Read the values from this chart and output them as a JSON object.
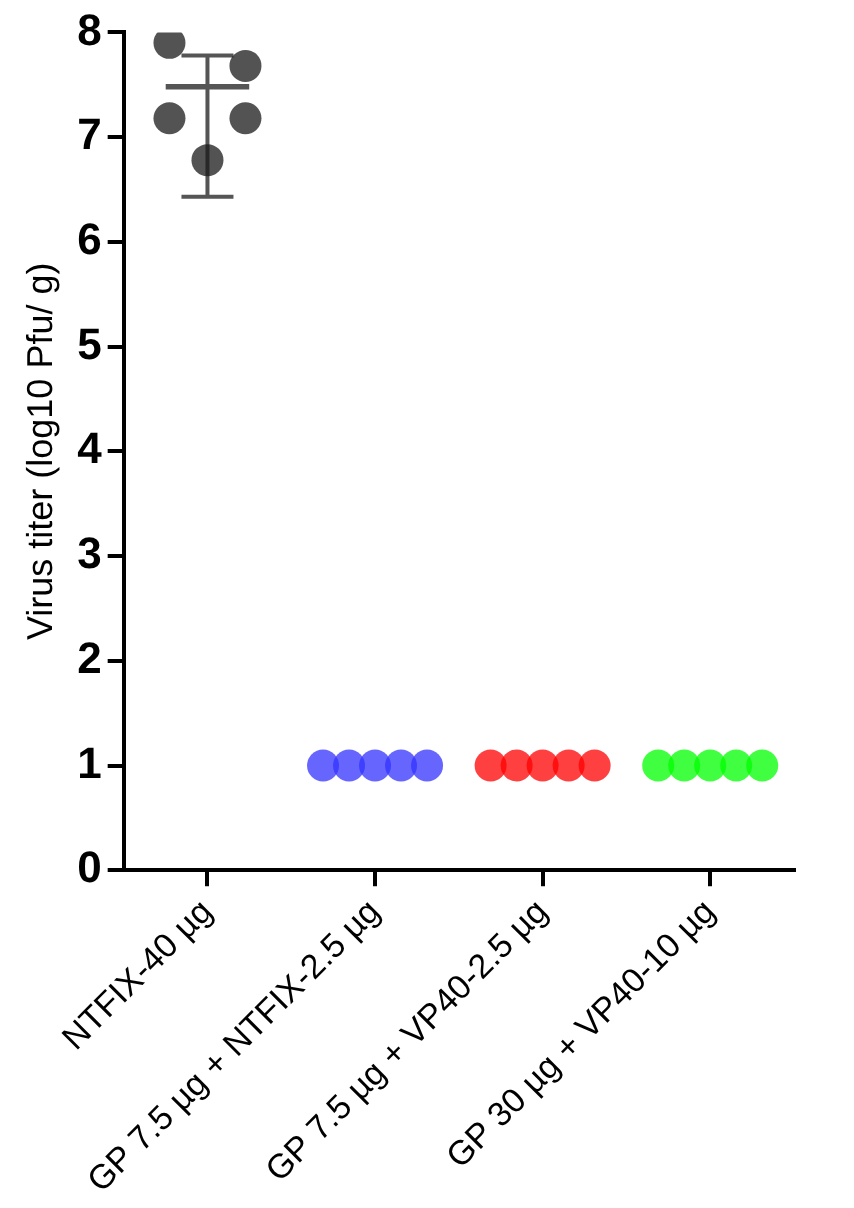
{
  "chart_data": {
    "type": "scatter",
    "ylabel": "Virus titer (log10 Pfu/ g)",
    "categories": [
      "NTFIX-40 µg",
      "GP 7.5 µg + NTFIX-2.5 µg",
      "GP 7.5 µg + VP40-2.5 µg",
      "GP 30 µg + VP40-10 µg"
    ],
    "ylim": [
      0,
      8
    ],
    "yticks": [
      0,
      1,
      2,
      3,
      4,
      5,
      6,
      7,
      8
    ],
    "grid": false,
    "legend": false,
    "marker": "circle",
    "series": [
      {
        "type": "bar",
        "color": "#555555",
        "values": [
          7.5,
          null,
          null,
          null
        ],
        "errors": [
          [
            6.43,
            7.78
          ],
          null,
          null,
          null
        ]
      },
      {
        "color": "#1a1a1a",
        "x": [
          "NTFIX-40 µg",
          "NTFIX-40 µg",
          "NTFIX-40 µg",
          "NTFIX-40 µg",
          "NTFIX-40 µg"
        ],
        "values": [
          7.9,
          7.68,
          7.18,
          7.18,
          6.78
        ]
      },
      {
        "color": "#3333ff",
        "x": [
          "GP 7.5 µg + NTFIX-2.5 µg",
          "GP 7.5 µg + NTFIX-2.5 µg",
          "GP 7.5 µg + NTFIX-2.5 µg",
          "GP 7.5 µg + NTFIX-2.5 µg",
          "GP 7.5 µg + NTFIX-2.5 µg"
        ],
        "values": [
          1,
          1,
          1,
          1,
          1
        ]
      },
      {
        "color": "#ff0000",
        "x": [
          "GP 7.5 µg + VP40-2.5 µg",
          "GP 7.5 µg + VP40-2.5 µg",
          "GP 7.5 µg + VP40-2.5 µg",
          "GP 7.5 µg + VP40-2.5 µg",
          "GP 7.5 µg + VP40-2.5 µg"
        ],
        "values": [
          1,
          1,
          1,
          1,
          1
        ]
      },
      {
        "color": "#00ff00",
        "x": [
          "GP 30 µg + VP40-10 µg",
          "GP 30 µg + VP40-10 µg",
          "GP 30 µg + VP40-10 µg",
          "GP 30 µg + VP40-10 µg",
          "GP 30 µg + VP40-10 µg"
        ],
        "values": [
          1,
          1,
          1,
          1,
          1
        ]
      }
    ]
  }
}
